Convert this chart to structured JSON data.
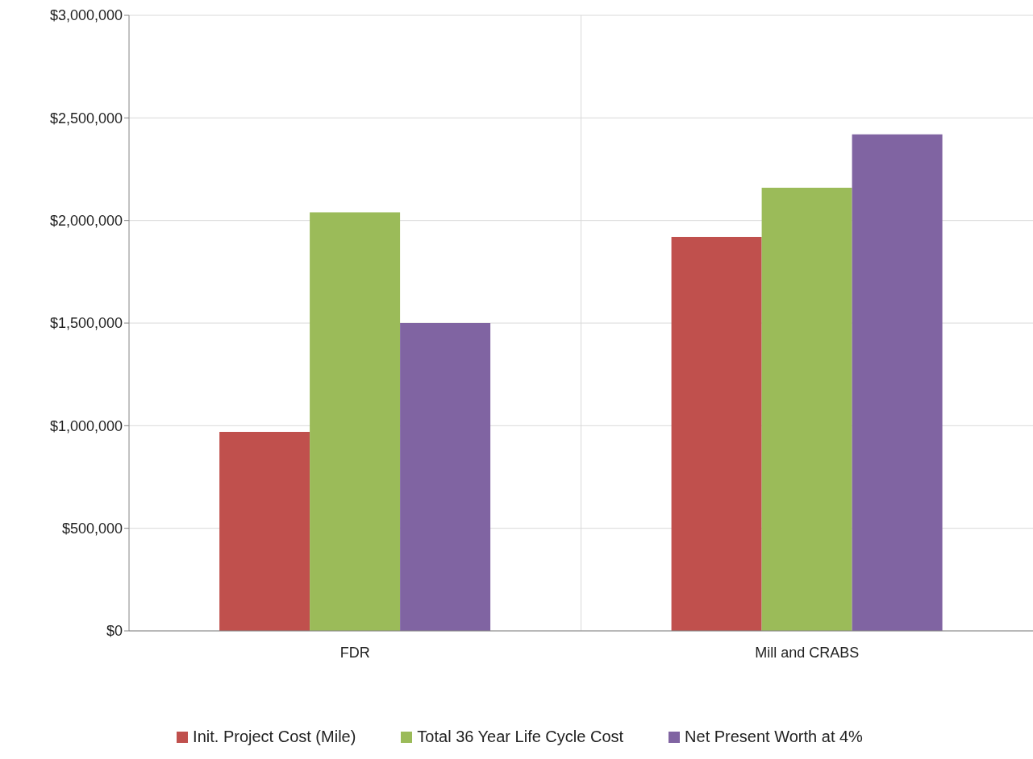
{
  "chart_data": {
    "type": "bar",
    "categories": [
      "FDR",
      "Mill and CRABS"
    ],
    "series": [
      {
        "name": "Init. Project Cost (Mile)",
        "color": "#c0504d",
        "values": [
          970000,
          1920000
        ]
      },
      {
        "name": "Total 36 Year Life Cycle Cost",
        "color": "#9bbb59",
        "values": [
          2040000,
          2160000
        ]
      },
      {
        "name": "Net Present Worth at 4%",
        "color": "#8064a2",
        "values": [
          1500000,
          2420000
        ]
      }
    ],
    "ylim": [
      0,
      3000000
    ],
    "yticks": [
      {
        "value": 0,
        "label": "$0"
      },
      {
        "value": 500000,
        "label": "$500,000"
      },
      {
        "value": 1000000,
        "label": "$1,000,000"
      },
      {
        "value": 1500000,
        "label": "$1,500,000"
      },
      {
        "value": 2000000,
        "label": "$2,000,000"
      },
      {
        "value": 2500000,
        "label": "$2,500,000"
      },
      {
        "value": 3000000,
        "label": "$3,000,000"
      }
    ],
    "grid": true,
    "legend": "bottom"
  }
}
